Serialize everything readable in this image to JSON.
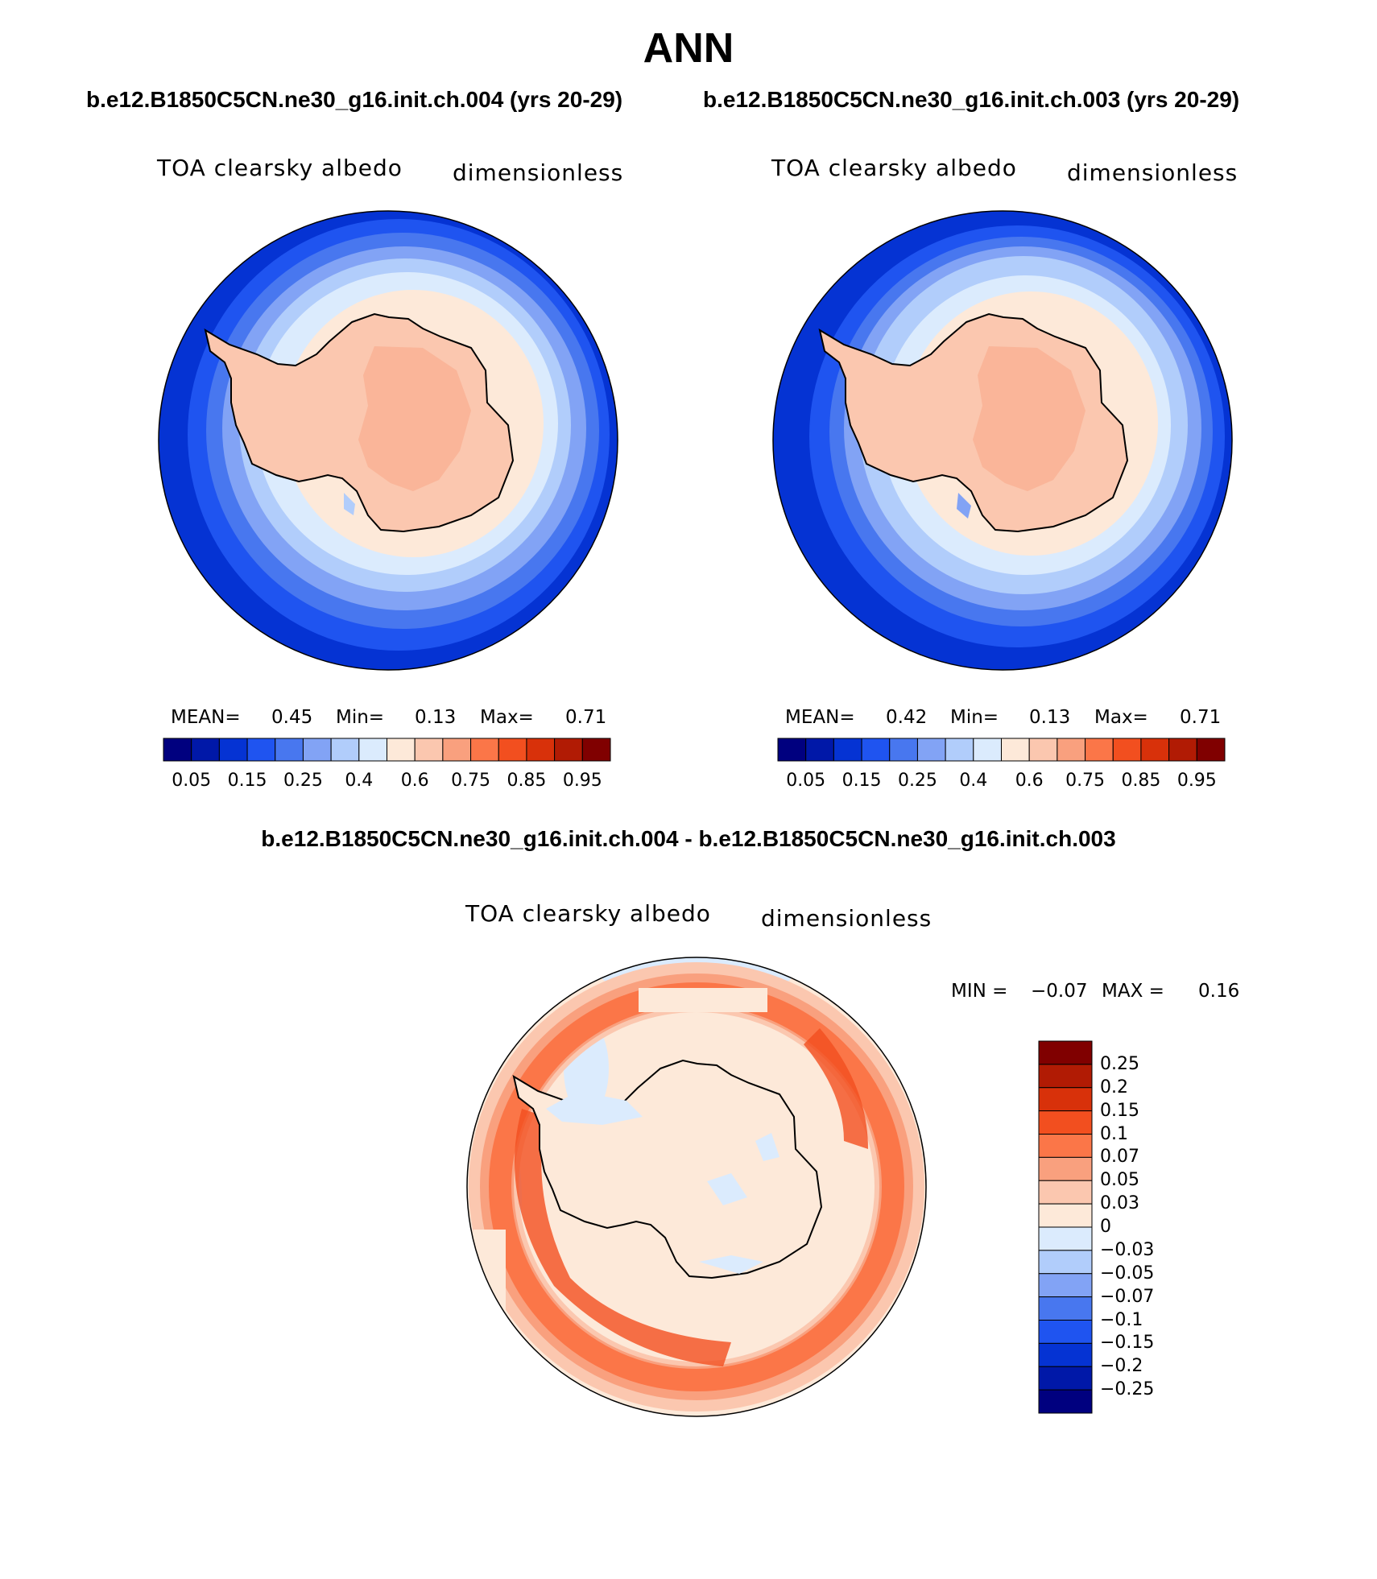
{
  "title": "ANN",
  "runs": {
    "case_title": "b.e12.B1850C5CN.ne30_g16.init.ch.004 (yrs 20-29)",
    "control_title": "b.e12.B1850C5CN.ne30_g16.init.ch.003 (yrs 20-29)",
    "difference_title": "b.e12.B1850C5CN.ne30_g16.init.ch.004 - b.e12.B1850C5CN.ne30_g16.init.ch.003"
  },
  "panels": [
    {
      "name": "case",
      "variable_label": "TOA clearsky albedo",
      "units_label": "dimensionless",
      "mean_label": "MEAN=",
      "mean_value": "0.45",
      "min_label": "Min=",
      "min_value": "0.13",
      "max_label": "Max=",
      "max_value": "0.71"
    },
    {
      "name": "control",
      "variable_label": "TOA clearsky albedo",
      "units_label": "dimensionless",
      "mean_label": "MEAN=",
      "mean_value": "0.42",
      "min_label": "Min=",
      "min_value": "0.13",
      "max_label": "Max=",
      "max_value": "0.71"
    }
  ],
  "difference_panel": {
    "variable_label": "TOA clearsky albedo",
    "units_label": "dimensionless",
    "min_label": "MIN =",
    "min_value": "−0.07",
    "max_label": "MAX =",
    "max_value": "0.16"
  },
  "colorbar_main": {
    "colors": [
      "#00007f",
      "#0018a8",
      "#0533d3",
      "#1f54f0",
      "#4877ef",
      "#82a3f5",
      "#b1cdfb",
      "#dbebfd",
      "#fde9d9",
      "#fbc7af",
      "#f9a07e",
      "#fb7648",
      "#f24f1f",
      "#d8310a",
      "#b11b04",
      "#800000"
    ],
    "tick_labels": [
      "0.05",
      "0.15",
      "0.25",
      "0.4",
      "0.6",
      "0.75",
      "0.85",
      "0.95"
    ]
  },
  "colorbar_diff": {
    "colors": [
      "#800000",
      "#b11b04",
      "#d8310a",
      "#f24f1f",
      "#fb7648",
      "#f9a07e",
      "#fbc7af",
      "#fde9d9",
      "#dbebfd",
      "#b1cdfb",
      "#82a3f5",
      "#4877ef",
      "#1f54f0",
      "#0533d3",
      "#0018a8",
      "#00007f"
    ],
    "tick_labels": [
      "0.25",
      "0.2",
      "0.15",
      "0.1",
      "0.07",
      "0.05",
      "0.03",
      "0",
      "−0.03",
      "−0.05",
      "−0.07",
      "−0.1",
      "−0.15",
      "−0.2",
      "−0.25"
    ]
  }
}
